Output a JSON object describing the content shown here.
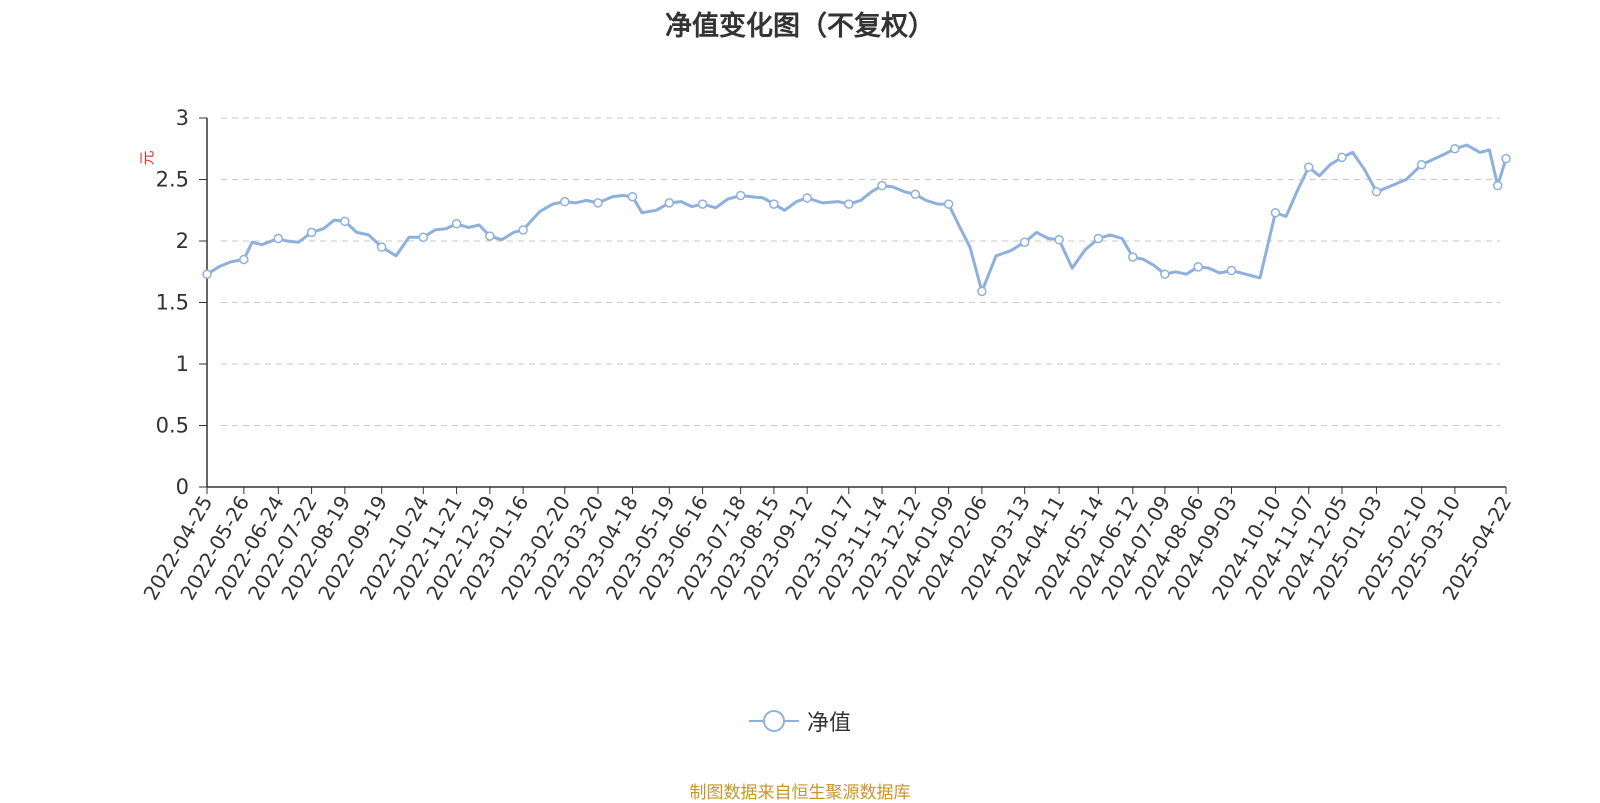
{
  "chart_data": {
    "type": "line",
    "title": "净值变化图（不复权）",
    "ylabel": "元",
    "xlabel": "",
    "ylim": [
      0,
      3
    ],
    "y_ticks": [
      "0",
      "0.5",
      "1",
      "1.5",
      "2",
      "2.5",
      "3"
    ],
    "y_tick_values": [
      0,
      0.5,
      1,
      1.5,
      2,
      2.5,
      3
    ],
    "grid": true,
    "legend_position": "bottom-center",
    "x_tick_labels": [
      "2022-04-25",
      "2022-05-26",
      "2022-06-24",
      "2022-07-22",
      "2022-08-19",
      "2022-09-19",
      "2022-10-24",
      "2022-11-21",
      "2022-12-19",
      "2023-01-16",
      "2023-02-20",
      "2023-03-20",
      "2023-04-18",
      "2023-05-19",
      "2023-06-16",
      "2023-07-18",
      "2023-08-15",
      "2023-09-12",
      "2023-10-17",
      "2023-11-14",
      "2023-12-12",
      "2024-01-09",
      "2024-02-06",
      "2024-03-13",
      "2024-04-11",
      "2024-05-14",
      "2024-06-12",
      "2024-07-09",
      "2024-08-06",
      "2024-09-03",
      "2024-10-10",
      "2024-11-07",
      "2024-12-05",
      "2025-01-03",
      "2025-02-10",
      "2025-03-10",
      "2025-04-22"
    ],
    "series": [
      {
        "name": "净值",
        "color": "#8eb0dc",
        "x": [
          "2022-04-25",
          "2022-05-05",
          "2022-05-15",
          "2022-05-26",
          "2022-06-02",
          "2022-06-10",
          "2022-06-24",
          "2022-07-01",
          "2022-07-11",
          "2022-07-22",
          "2022-08-01",
          "2022-08-10",
          "2022-08-19",
          "2022-08-29",
          "2022-09-08",
          "2022-09-19",
          "2022-10-01",
          "2022-10-12",
          "2022-10-24",
          "2022-11-03",
          "2022-11-12",
          "2022-11-21",
          "2022-12-01",
          "2022-12-10",
          "2022-12-19",
          "2022-12-29",
          "2023-01-08",
          "2023-01-16",
          "2023-01-30",
          "2023-02-10",
          "2023-02-20",
          "2023-03-01",
          "2023-03-10",
          "2023-03-20",
          "2023-04-01",
          "2023-04-10",
          "2023-04-18",
          "2023-04-26",
          "2023-05-08",
          "2023-05-19",
          "2023-05-29",
          "2023-06-07",
          "2023-06-16",
          "2023-06-27",
          "2023-07-07",
          "2023-07-18",
          "2023-07-27",
          "2023-08-06",
          "2023-08-15",
          "2023-08-24",
          "2023-09-03",
          "2023-09-12",
          "2023-09-25",
          "2023-10-08",
          "2023-10-17",
          "2023-10-27",
          "2023-11-05",
          "2023-11-14",
          "2023-11-23",
          "2023-12-03",
          "2023-12-12",
          "2023-12-21",
          "2023-12-31",
          "2024-01-09",
          "2024-01-18",
          "2024-01-27",
          "2024-02-06",
          "2024-02-18",
          "2024-03-01",
          "2024-03-13",
          "2024-03-23",
          "2024-04-02",
          "2024-04-11",
          "2024-04-22",
          "2024-05-03",
          "2024-05-14",
          "2024-05-24",
          "2024-06-03",
          "2024-06-12",
          "2024-06-21",
          "2024-06-30",
          "2024-07-09",
          "2024-07-18",
          "2024-07-27",
          "2024-08-06",
          "2024-08-15",
          "2024-08-24",
          "2024-09-03",
          "2024-09-15",
          "2024-09-27",
          "2024-10-10",
          "2024-10-19",
          "2024-10-28",
          "2024-11-07",
          "2024-11-16",
          "2024-11-25",
          "2024-12-05",
          "2024-12-14",
          "2024-12-24",
          "2025-01-03",
          "2025-01-16",
          "2025-01-28",
          "2025-02-10",
          "2025-02-19",
          "2025-02-28",
          "2025-03-10",
          "2025-03-20",
          "2025-03-31",
          "2025-04-08",
          "2025-04-15",
          "2025-04-22"
        ],
        "values": [
          1.73,
          1.79,
          1.83,
          1.85,
          1.99,
          1.97,
          2.02,
          2.0,
          1.99,
          2.07,
          2.1,
          2.17,
          2.16,
          2.07,
          2.05,
          1.95,
          1.88,
          2.03,
          2.03,
          2.09,
          2.1,
          2.14,
          2.11,
          2.13,
          2.04,
          2.01,
          2.07,
          2.09,
          2.24,
          2.3,
          2.32,
          2.31,
          2.33,
          2.31,
          2.36,
          2.37,
          2.36,
          2.23,
          2.25,
          2.31,
          2.32,
          2.28,
          2.3,
          2.27,
          2.34,
          2.37,
          2.36,
          2.35,
          2.3,
          2.25,
          2.32,
          2.35,
          2.31,
          2.32,
          2.3,
          2.33,
          2.4,
          2.45,
          2.44,
          2.4,
          2.38,
          2.33,
          2.3,
          2.3,
          2.12,
          1.95,
          1.59,
          1.88,
          1.92,
          1.99,
          2.07,
          2.02,
          2.01,
          1.78,
          1.93,
          2.02,
          2.05,
          2.02,
          1.87,
          1.85,
          1.8,
          1.73,
          1.75,
          1.73,
          1.79,
          1.78,
          1.74,
          1.76,
          1.73,
          1.7,
          2.23,
          2.2,
          2.4,
          2.6,
          2.53,
          2.62,
          2.68,
          2.72,
          2.58,
          2.4,
          2.45,
          2.5,
          2.62,
          2.66,
          2.7,
          2.75,
          2.78,
          2.72,
          2.74,
          2.45,
          2.67
        ],
        "markers": [
          0,
          3,
          6,
          9,
          12,
          15,
          18,
          21,
          24,
          27,
          30,
          33,
          36,
          39,
          42,
          45,
          48,
          51,
          54,
          57,
          60,
          63,
          66,
          69,
          72,
          75,
          78,
          81,
          84,
          87,
          90,
          93,
          96,
          99,
          102,
          105,
          109,
          110
        ]
      }
    ]
  },
  "legend": {
    "label": "净值"
  },
  "source_note": "制图数据来自恒生聚源数据库"
}
